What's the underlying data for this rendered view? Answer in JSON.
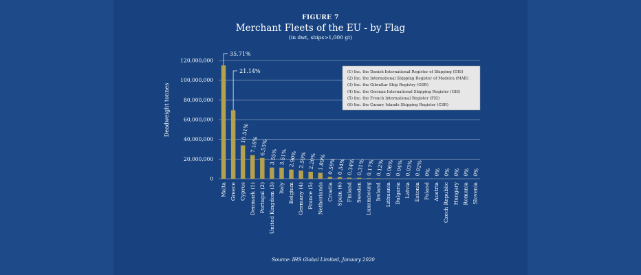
{
  "chart_data": {
    "type": "bar",
    "figure_label": "FIGURE 7",
    "title": "Merchant Fleets of the EU - by Flag",
    "subtitle": "(in dwt, ships>1,000 gt)",
    "ylabel": "Deadweight tonnes",
    "xlabel": "",
    "ylim": [
      0,
      120000000
    ],
    "yticks": [
      "0",
      "20,000,000",
      "40,000,000",
      "60,000,000",
      "80,000,000",
      "100,000,000",
      "120,000,000"
    ],
    "ytick_values": [
      0,
      20000000,
      40000000,
      60000000,
      80000000,
      100000000,
      120000000
    ],
    "grid": true,
    "bar_color": "#b5a04e",
    "categories": [
      "Malta",
      "Greece",
      "Cyprus",
      "Denmark (1)",
      "Portugal (2)",
      "United Kingdom (3)",
      "Italy",
      "Belgium",
      "Germany (4)",
      "France (5)",
      "Netherlands",
      "Croatia",
      "Spain (6)",
      "Finland",
      "Sweden",
      "Luxembourg",
      "Ireland",
      "Lithuania",
      "Bulgaria",
      "Latvia",
      "Estonia",
      "Poland",
      "Austria",
      "Czech Republic",
      "Hungary",
      "Romania",
      "Slovenia"
    ],
    "values": [
      115000000,
      69500000,
      33900000,
      24000000,
      21100000,
      11400000,
      11300000,
      9300000,
      8300000,
      7100000,
      6100000,
      1900000,
      1700000,
      1100000,
      1000000,
      550000,
      390000,
      200000,
      130000,
      100000,
      60000,
      0,
      0,
      0,
      0,
      0,
      0
    ],
    "labels": [
      "35.71%",
      "21.14%",
      "10.51%",
      "7.18%",
      "6.55%",
      "3.55%",
      "3.51%",
      "2.90%",
      "2.59%",
      "2.20%",
      "1.89%",
      "0.59%",
      "0.54%",
      "0.34%",
      "0.31%",
      "0.17%",
      "0.12%",
      "0.06%",
      "0.04%",
      "0.03%",
      "0.02%",
      "0%",
      "0%",
      "0%",
      "0%",
      "0%",
      "0%"
    ],
    "legend_placement": "top-right",
    "legend": [
      "(1) Inc. the Danish International Register of Shipping (DIS)",
      "(2) Inc. the International Shipping Register of Madeira (MAR)",
      "(3) Inc. the Gibraltar Ship Registry (GSR)",
      "(4) Inc. the German International Shipping Register (GIS)",
      "(5) Inc. the French International Register (FIS)",
      "(6) Inc. the Canary Islands Shipping Register (CSR)"
    ],
    "source": "Source: IHS Global Limited, January 2020"
  }
}
